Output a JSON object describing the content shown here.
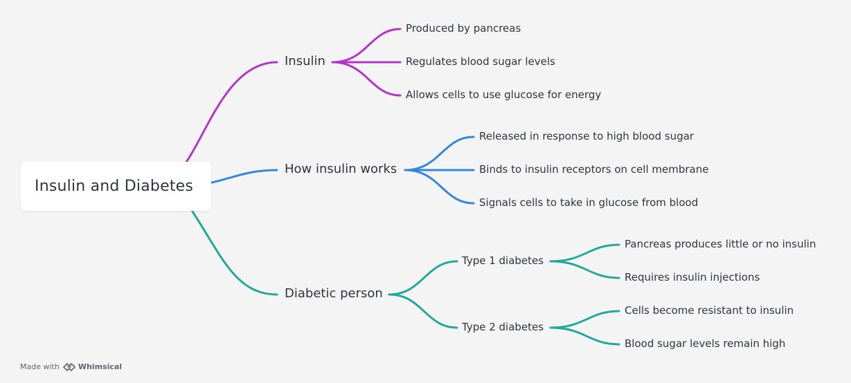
{
  "root": {
    "label": "Insulin and Diabetes"
  },
  "colors": {
    "insulin": "#b335c8",
    "how_insulin_works": "#3388d9",
    "diabetic_person": "#22a898",
    "background": "#f4f4f4",
    "text": "#2d3540"
  },
  "branches": {
    "insulin": {
      "label": "Insulin",
      "children": [
        "Produced by pancreas",
        "Regulates blood sugar levels",
        "Allows cells to use glucose for energy"
      ]
    },
    "how_insulin_works": {
      "label": "How insulin works",
      "children": [
        "Released in response to high blood sugar",
        "Binds to insulin receptors on cell membrane",
        "Signals cells to take in glucose from blood"
      ]
    },
    "diabetic_person": {
      "label": "Diabetic person",
      "type1": {
        "label": "Type 1 diabetes",
        "children": [
          "Pancreas produces little or no insulin",
          "Requires insulin injections"
        ]
      },
      "type2": {
        "label": "Type 2 diabetes",
        "children": [
          "Cells become resistant to insulin",
          "Blood sugar levels remain high"
        ]
      }
    }
  },
  "footer": {
    "made_with": "Made with",
    "brand": "Whimsical",
    "logo_icon": "whimsical-logo-icon"
  }
}
